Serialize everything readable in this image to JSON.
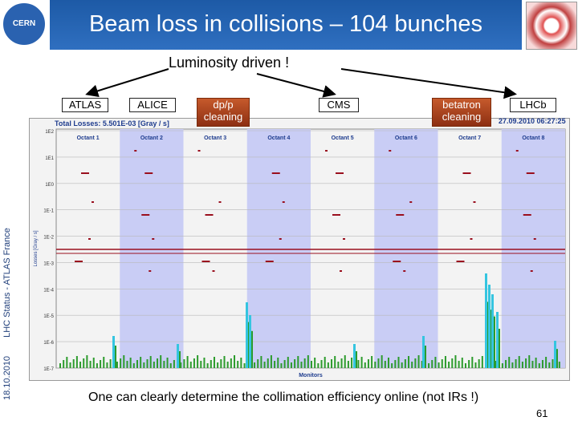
{
  "header": {
    "title": "Beam loss in collisions – 104 bunches",
    "cern_logo_text": "CERN"
  },
  "side": {
    "date": "18.10.2010",
    "text": "LHC Status - ATLAS France"
  },
  "subtitle": "Luminosity driven !",
  "labels": {
    "atlas": "ATLAS",
    "alice": "ALICE",
    "dpp": "dp/p cleaning",
    "cms": "CMS",
    "betatron": "betatron cleaning",
    "lhcb": "LHCb"
  },
  "plot": {
    "total": "Total Losses: 5.501E-03 [Gray / s]",
    "timestamp": "27.09.2010 06:27:25",
    "octants": [
      "Octant 1",
      "Octant 2",
      "Octant 3",
      "Octant 4",
      "Octant 5",
      "Octant 6",
      "Octant 7",
      "Octant 8"
    ],
    "y_ticks": [
      "1E2",
      "1E1",
      "1E0",
      "1E-1",
      "1E-2",
      "1E-3",
      "1E-4",
      "1E-5",
      "1E-6",
      "1E-7"
    ],
    "ylabel": "Losses [Gray / s]",
    "xlabel": "Monitors"
  },
  "footer": {
    "text": "One can clearly determine the collimation efficiency online (not IRs !)",
    "page": "61"
  },
  "colors": {
    "header_blue": "#2f6fc0",
    "octant_band": "#c9cdf5",
    "threshold_red": "#9a0f1e",
    "loss_green": "#2c9b2c",
    "loss_cyan": "#35c5e0"
  }
}
